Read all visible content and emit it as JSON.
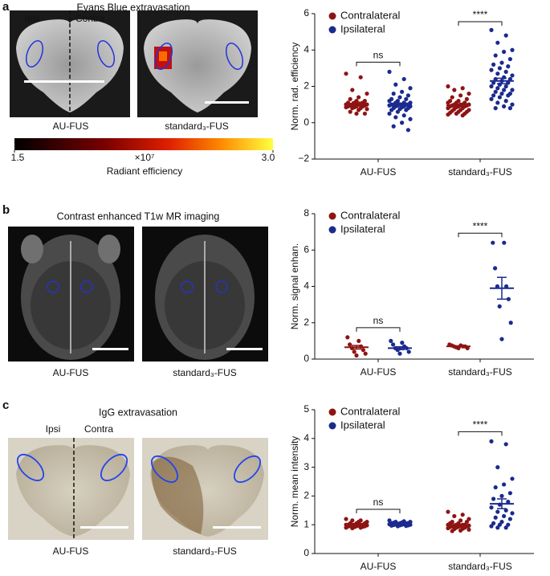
{
  "panels": [
    {
      "label": "a",
      "title": "Evans Blue extravasation",
      "side_labels": [
        "Ipsi",
        "Contra"
      ],
      "image_labels": [
        "AU-FUS",
        "standard₃-FUS"
      ],
      "colorbar": {
        "lim": [
          1.5,
          3
        ],
        "ticks": [
          1.5,
          {
            "value": 3,
            "label": "3.0"
          }
        ],
        "multiplier": "×10⁷",
        "label": "Radiant efficiency"
      }
    },
    {
      "label": "b",
      "title": "Contrast enhanced T1w MR imaging",
      "image_labels": [
        "AU-FUS",
        "standard₃-FUS"
      ]
    },
    {
      "label": "c",
      "title": "IgG extravasation",
      "side_labels": [
        "Ipsi",
        "Contra"
      ],
      "image_labels": [
        "AU-FUS",
        "standard₃-FUS"
      ]
    }
  ],
  "chart_data": [
    {
      "type": "strip",
      "ylabel": "Norm. rad. efficiency",
      "categories": [
        "AU-FUS",
        "standard₃-FUS"
      ],
      "ylim": [
        -2,
        6
      ],
      "yticks": [
        {
          "value": -2,
          "label": "−2"
        },
        0,
        2,
        4,
        6
      ],
      "annotations": [
        "ns",
        "****"
      ],
      "series": [
        {
          "name": "Contralateral",
          "color": "#8e1414",
          "mean": [
            1.05,
            0.95
          ],
          "sem": [
            0.08,
            0.06
          ],
          "values": [
            [
              2.7,
              2.5,
              1.8,
              1.6,
              1.4,
              1.3,
              1.2,
              1.2,
              1.1,
              1.1,
              1.1,
              1.0,
              1.0,
              1.0,
              1.0,
              1.0,
              0.95,
              0.95,
              0.9,
              0.9,
              0.9,
              0.85,
              0.85,
              0.8,
              0.8,
              0.75,
              0.7,
              0.6,
              0.5,
              0.5
            ],
            [
              2.0,
              1.9,
              1.8,
              1.6,
              1.5,
              1.4,
              1.3,
              1.2,
              1.2,
              1.1,
              1.1,
              1.1,
              1.0,
              1.0,
              1.0,
              1.0,
              0.95,
              0.95,
              0.9,
              0.9,
              0.9,
              0.85,
              0.8,
              0.8,
              0.75,
              0.7,
              0.7,
              0.65,
              0.6,
              0.6,
              0.55,
              0.5,
              0.5,
              0.45,
              0.4
            ]
          ]
        },
        {
          "name": "Ipsilateral",
          "color": "#1b2a8e",
          "mean": [
            1.0,
            2.3
          ],
          "sem": [
            0.08,
            0.15
          ],
          "values": [
            [
              2.8,
              2.4,
              2.1,
              1.9,
              1.7,
              1.6,
              1.5,
              1.4,
              1.3,
              1.3,
              1.2,
              1.2,
              1.1,
              1.1,
              1.1,
              1.0,
              1.0,
              1.0,
              1.0,
              1.0,
              1.0,
              0.95,
              0.95,
              0.9,
              0.9,
              0.9,
              0.85,
              0.8,
              0.8,
              0.75,
              0.7,
              0.7,
              0.6,
              0.5,
              0.4,
              0.3,
              0.2,
              0.0,
              -0.2,
              -0.4
            ],
            [
              5.1,
              4.8,
              4.4,
              4.0,
              3.9,
              3.7,
              3.5,
              3.3,
              3.2,
              3.1,
              3.0,
              2.9,
              2.8,
              2.7,
              2.6,
              2.5,
              2.4,
              2.4,
              2.3,
              2.2,
              2.2,
              2.1,
              2.0,
              2.0,
              1.9,
              1.8,
              1.8,
              1.7,
              1.6,
              1.6,
              1.5,
              1.5,
              1.4,
              1.3,
              1.2,
              1.1,
              1.0,
              0.9,
              0.8,
              0.8
            ]
          ]
        }
      ]
    },
    {
      "type": "strip",
      "ylabel": "Norm. signal enhan.",
      "categories": [
        "AU-FUS",
        "standard₃-FUS"
      ],
      "ylim": [
        0,
        8
      ],
      "yticks": [
        0,
        2,
        4,
        6,
        8
      ],
      "annotations": [
        "ns",
        "****"
      ],
      "series": [
        {
          "name": "Contralateral",
          "color": "#8e1414",
          "mean": [
            0.65,
            0.7
          ],
          "sem": [
            0.1,
            0.03
          ],
          "values": [
            [
              1.2,
              1.0,
              0.8,
              0.7,
              0.6,
              0.5,
              0.4,
              0.3,
              0.2
            ],
            [
              0.8,
              0.75,
              0.75,
              0.7,
              0.7,
              0.7,
              0.65,
              0.6,
              0.6
            ]
          ]
        },
        {
          "name": "Ipsilateral",
          "color": "#1b2a8e",
          "mean": [
            0.6,
            3.9
          ],
          "sem": [
            0.08,
            0.6
          ],
          "values": [
            [
              1.0,
              0.9,
              0.8,
              0.7,
              0.6,
              0.6,
              0.5,
              0.4,
              0.3
            ],
            [
              6.4,
              6.4,
              5.0,
              4.0,
              4.0,
              3.3,
              2.9,
              2.0,
              1.1
            ]
          ]
        }
      ]
    },
    {
      "type": "strip",
      "ylabel": "Norm. mean intensity",
      "categories": [
        "AU-FUS",
        "standard₃-FUS"
      ],
      "ylim": [
        0,
        5
      ],
      "yticks": [
        0,
        1,
        2,
        3,
        4,
        5
      ],
      "annotations": [
        "ns",
        "****"
      ],
      "series": [
        {
          "name": "Contralateral",
          "color": "#8e1414",
          "mean": [
            1.0,
            0.99
          ],
          "sem": [
            0.015,
            0.03
          ],
          "values": [
            [
              1.2,
              1.15,
              1.15,
              1.1,
              1.1,
              1.05,
              1.05,
              1.05,
              1.0,
              1.0,
              1.0,
              1.0,
              1.0,
              1.0,
              0.98,
              0.97,
              0.96,
              0.95,
              0.95,
              0.94,
              0.93,
              0.92,
              0.9,
              0.9,
              0.88
            ],
            [
              1.45,
              1.35,
              1.3,
              1.2,
              1.15,
              1.1,
              1.1,
              1.05,
              1.05,
              1.0,
              1.0,
              1.0,
              1.0,
              0.98,
              0.97,
              0.96,
              0.95,
              0.95,
              0.93,
              0.92,
              0.9,
              0.9,
              0.88,
              0.86,
              0.85,
              0.83,
              0.8,
              0.78
            ]
          ]
        },
        {
          "name": "Ipsilateral",
          "color": "#1b2a8e",
          "mean": [
            1.04,
            1.73
          ],
          "sem": [
            0.012,
            0.17
          ],
          "values": [
            [
              1.15,
              1.12,
              1.1,
              1.1,
              1.08,
              1.07,
              1.06,
              1.05,
              1.05,
              1.04,
              1.03,
              1.02,
              1.02,
              1.01,
              1.0,
              1.0,
              0.99,
              0.98,
              0.98,
              0.97,
              0.96,
              0.95
            ],
            [
              3.9,
              3.8,
              3.0,
              2.6,
              2.4,
              2.3,
              2.1,
              2.0,
              1.9,
              1.8,
              1.7,
              1.6,
              1.5,
              1.45,
              1.4,
              1.3,
              1.25,
              1.2,
              1.1,
              1.05,
              1.0,
              1.0,
              0.95,
              0.9,
              0.9
            ]
          ]
        }
      ]
    }
  ]
}
